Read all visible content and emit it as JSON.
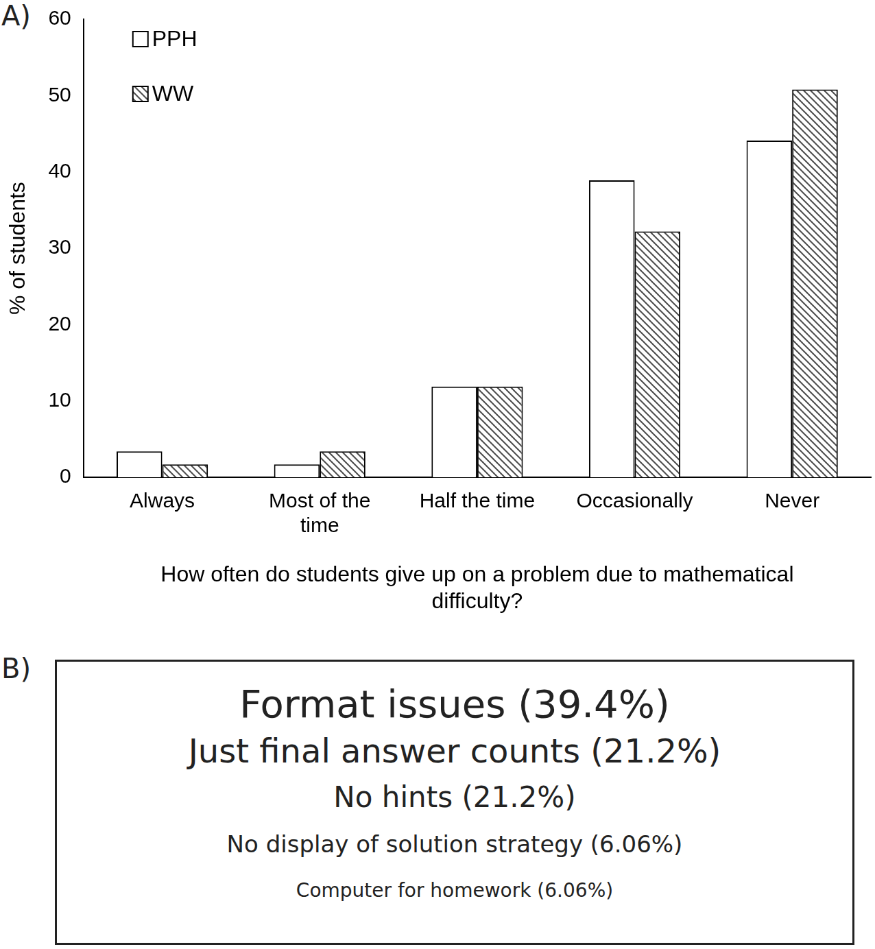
{
  "chart_data": {
    "type": "bar",
    "panel_label": "A)",
    "categories": [
      "Always",
      "Most of the time",
      "Half the time",
      "Occasionally",
      "Never"
    ],
    "series": [
      {
        "name": "PPH",
        "color": "#ffffff",
        "values": [
          3.4,
          1.7,
          11.9,
          38.9,
          44.1
        ]
      },
      {
        "name": "WW",
        "color": "#4d4d4d",
        "values": [
          1.7,
          3.4,
          11.9,
          32.2,
          50.8
        ]
      }
    ],
    "x_label": "How often do students give up on a problem due to mathematical difficulty?",
    "y_label": "% of students",
    "ylim": [
      0,
      60
    ],
    "yticks": [
      0,
      10,
      20,
      30,
      40,
      50,
      60
    ],
    "grid": false,
    "legend": "top-left"
  },
  "panel_b": {
    "label": "B)",
    "items": [
      "Format issues (39.4%)",
      "Just final answer counts (21.2%)",
      "No hints (21.2%)",
      "No display of solution strategy (6.06%)",
      "Computer for homework (6.06%)"
    ]
  }
}
